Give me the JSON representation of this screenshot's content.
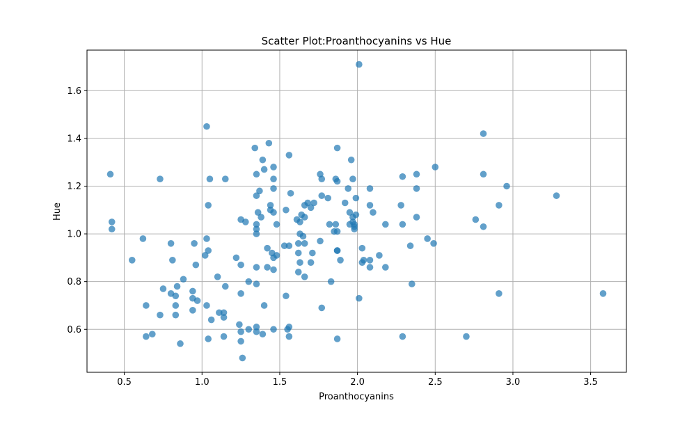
{
  "colors": {
    "marker": "#1f77b4",
    "grid": "#b0b0b0",
    "axis": "#000000"
  },
  "chart_data": {
    "type": "scatter",
    "title": "Scatter Plot:Proanthocyanins vs Hue",
    "xlabel": "Proanthocyanins",
    "ylabel": "Hue",
    "xlim": [
      0.26,
      3.73
    ],
    "ylim": [
      0.42,
      1.77
    ],
    "xticks": [
      0.5,
      1.0,
      1.5,
      2.0,
      2.5,
      3.0,
      3.5
    ],
    "yticks": [
      0.6,
      0.8,
      1.0,
      1.2,
      1.4,
      1.6
    ],
    "xtick_labels": [
      "0.5",
      "1.0",
      "1.5",
      "2.0",
      "2.5",
      "3.0",
      "3.5"
    ],
    "ytick_labels": [
      "0.6",
      "0.8",
      "1.0",
      "1.2",
      "1.4",
      "1.6"
    ],
    "grid": true,
    "marker_alpha": 0.7,
    "points": [
      [
        0.41,
        1.25
      ],
      [
        0.42,
        1.05
      ],
      [
        0.42,
        1.02
      ],
      [
        0.55,
        0.89
      ],
      [
        0.62,
        0.98
      ],
      [
        0.64,
        0.57
      ],
      [
        0.64,
        0.7
      ],
      [
        0.68,
        0.58
      ],
      [
        0.73,
        1.23
      ],
      [
        0.73,
        0.66
      ],
      [
        0.75,
        0.77
      ],
      [
        0.8,
        0.96
      ],
      [
        0.8,
        0.75
      ],
      [
        0.81,
        0.89
      ],
      [
        0.83,
        0.74
      ],
      [
        0.83,
        0.7
      ],
      [
        0.83,
        0.66
      ],
      [
        0.84,
        0.78
      ],
      [
        0.86,
        0.54
      ],
      [
        0.88,
        0.81
      ],
      [
        0.94,
        0.76
      ],
      [
        0.94,
        0.73
      ],
      [
        0.94,
        0.68
      ],
      [
        0.95,
        0.96
      ],
      [
        0.96,
        0.87
      ],
      [
        0.97,
        0.72
      ],
      [
        1.02,
        0.91
      ],
      [
        1.03,
        1.45
      ],
      [
        1.03,
        0.98
      ],
      [
        1.03,
        0.7
      ],
      [
        1.04,
        1.12
      ],
      [
        1.04,
        0.93
      ],
      [
        1.04,
        0.56
      ],
      [
        1.05,
        1.23
      ],
      [
        1.06,
        0.64
      ],
      [
        1.1,
        0.82
      ],
      [
        1.11,
        0.67
      ],
      [
        1.14,
        0.67
      ],
      [
        1.14,
        0.65
      ],
      [
        1.14,
        0.57
      ],
      [
        1.15,
        1.23
      ],
      [
        1.15,
        0.78
      ],
      [
        1.22,
        0.9
      ],
      [
        1.24,
        0.62
      ],
      [
        1.25,
        1.06
      ],
      [
        1.25,
        0.87
      ],
      [
        1.25,
        0.75
      ],
      [
        1.25,
        0.59
      ],
      [
        1.25,
        0.55
      ],
      [
        1.26,
        0.48
      ],
      [
        1.28,
        1.05
      ],
      [
        1.3,
        0.8
      ],
      [
        1.3,
        0.6
      ],
      [
        1.34,
        1.36
      ],
      [
        1.35,
        1.25
      ],
      [
        1.35,
        1.16
      ],
      [
        1.35,
        1.04
      ],
      [
        1.35,
        1.02
      ],
      [
        1.35,
        1.0
      ],
      [
        1.35,
        0.86
      ],
      [
        1.35,
        0.79
      ],
      [
        1.35,
        0.61
      ],
      [
        1.35,
        0.59
      ],
      [
        1.36,
        1.09
      ],
      [
        1.37,
        1.18
      ],
      [
        1.38,
        1.07
      ],
      [
        1.39,
        1.31
      ],
      [
        1.39,
        0.58
      ],
      [
        1.4,
        1.27
      ],
      [
        1.4,
        0.7
      ],
      [
        1.42,
        0.94
      ],
      [
        1.42,
        0.86
      ],
      [
        1.43,
        1.38
      ],
      [
        1.44,
        1.12
      ],
      [
        1.44,
        1.1
      ],
      [
        1.45,
        0.92
      ],
      [
        1.46,
        1.28
      ],
      [
        1.46,
        1.23
      ],
      [
        1.46,
        1.19
      ],
      [
        1.46,
        1.09
      ],
      [
        1.46,
        0.9
      ],
      [
        1.46,
        0.85
      ],
      [
        1.46,
        0.6
      ],
      [
        1.48,
        1.04
      ],
      [
        1.48,
        0.91
      ],
      [
        1.53,
        0.95
      ],
      [
        1.54,
        1.1
      ],
      [
        1.54,
        0.74
      ],
      [
        1.55,
        0.6
      ],
      [
        1.56,
        1.33
      ],
      [
        1.56,
        0.95
      ],
      [
        1.56,
        0.61
      ],
      [
        1.56,
        0.57
      ],
      [
        1.57,
        1.17
      ],
      [
        1.61,
        1.06
      ],
      [
        1.62,
        0.96
      ],
      [
        1.62,
        0.92
      ],
      [
        1.62,
        0.84
      ],
      [
        1.63,
        1.05
      ],
      [
        1.63,
        1.0
      ],
      [
        1.63,
        0.88
      ],
      [
        1.64,
        1.08
      ],
      [
        1.65,
        0.99
      ],
      [
        1.66,
        1.12
      ],
      [
        1.66,
        1.07
      ],
      [
        1.66,
        0.96
      ],
      [
        1.66,
        0.82
      ],
      [
        1.68,
        1.13
      ],
      [
        1.7,
        1.11
      ],
      [
        1.7,
        0.88
      ],
      [
        1.71,
        0.92
      ],
      [
        1.72,
        1.13
      ],
      [
        1.76,
        1.25
      ],
      [
        1.76,
        0.97
      ],
      [
        1.77,
        1.23
      ],
      [
        1.77,
        1.16
      ],
      [
        1.77,
        0.69
      ],
      [
        1.81,
        1.15
      ],
      [
        1.82,
        1.04
      ],
      [
        1.83,
        0.8
      ],
      [
        1.85,
        1.01
      ],
      [
        1.86,
        1.23
      ],
      [
        1.86,
        1.04
      ],
      [
        1.87,
        1.36
      ],
      [
        1.87,
        1.22
      ],
      [
        1.87,
        1.01
      ],
      [
        1.87,
        0.93
      ],
      [
        1.87,
        0.93
      ],
      [
        1.87,
        0.56
      ],
      [
        1.89,
        0.89
      ],
      [
        1.92,
        1.13
      ],
      [
        1.94,
        1.19
      ],
      [
        1.95,
        1.09
      ],
      [
        1.95,
        1.04
      ],
      [
        1.96,
        1.31
      ],
      [
        1.97,
        1.23
      ],
      [
        1.97,
        1.07
      ],
      [
        1.97,
        1.05
      ],
      [
        1.98,
        1.04
      ],
      [
        1.98,
        1.03
      ],
      [
        1.98,
        1.02
      ],
      [
        1.99,
        1.15
      ],
      [
        1.99,
        1.08
      ],
      [
        2.01,
        1.71
      ],
      [
        2.01,
        0.73
      ],
      [
        2.03,
        0.94
      ],
      [
        2.03,
        0.88
      ],
      [
        2.04,
        0.89
      ],
      [
        2.08,
        1.19
      ],
      [
        2.08,
        1.12
      ],
      [
        2.08,
        0.89
      ],
      [
        2.08,
        0.86
      ],
      [
        2.1,
        1.09
      ],
      [
        2.14,
        0.91
      ],
      [
        2.18,
        1.04
      ],
      [
        2.18,
        0.86
      ],
      [
        2.28,
        1.12
      ],
      [
        2.29,
        1.24
      ],
      [
        2.29,
        1.04
      ],
      [
        2.29,
        0.57
      ],
      [
        2.34,
        0.95
      ],
      [
        2.35,
        0.79
      ],
      [
        2.38,
        1.25
      ],
      [
        2.38,
        1.19
      ],
      [
        2.38,
        1.07
      ],
      [
        2.45,
        0.98
      ],
      [
        2.49,
        0.96
      ],
      [
        2.5,
        1.28
      ],
      [
        2.7,
        0.57
      ],
      [
        2.76,
        1.06
      ],
      [
        2.81,
        1.42
      ],
      [
        2.81,
        1.25
      ],
      [
        2.81,
        1.03
      ],
      [
        2.91,
        1.12
      ],
      [
        2.91,
        0.75
      ],
      [
        2.96,
        1.2
      ],
      [
        3.28,
        1.16
      ],
      [
        3.58,
        0.75
      ]
    ]
  }
}
